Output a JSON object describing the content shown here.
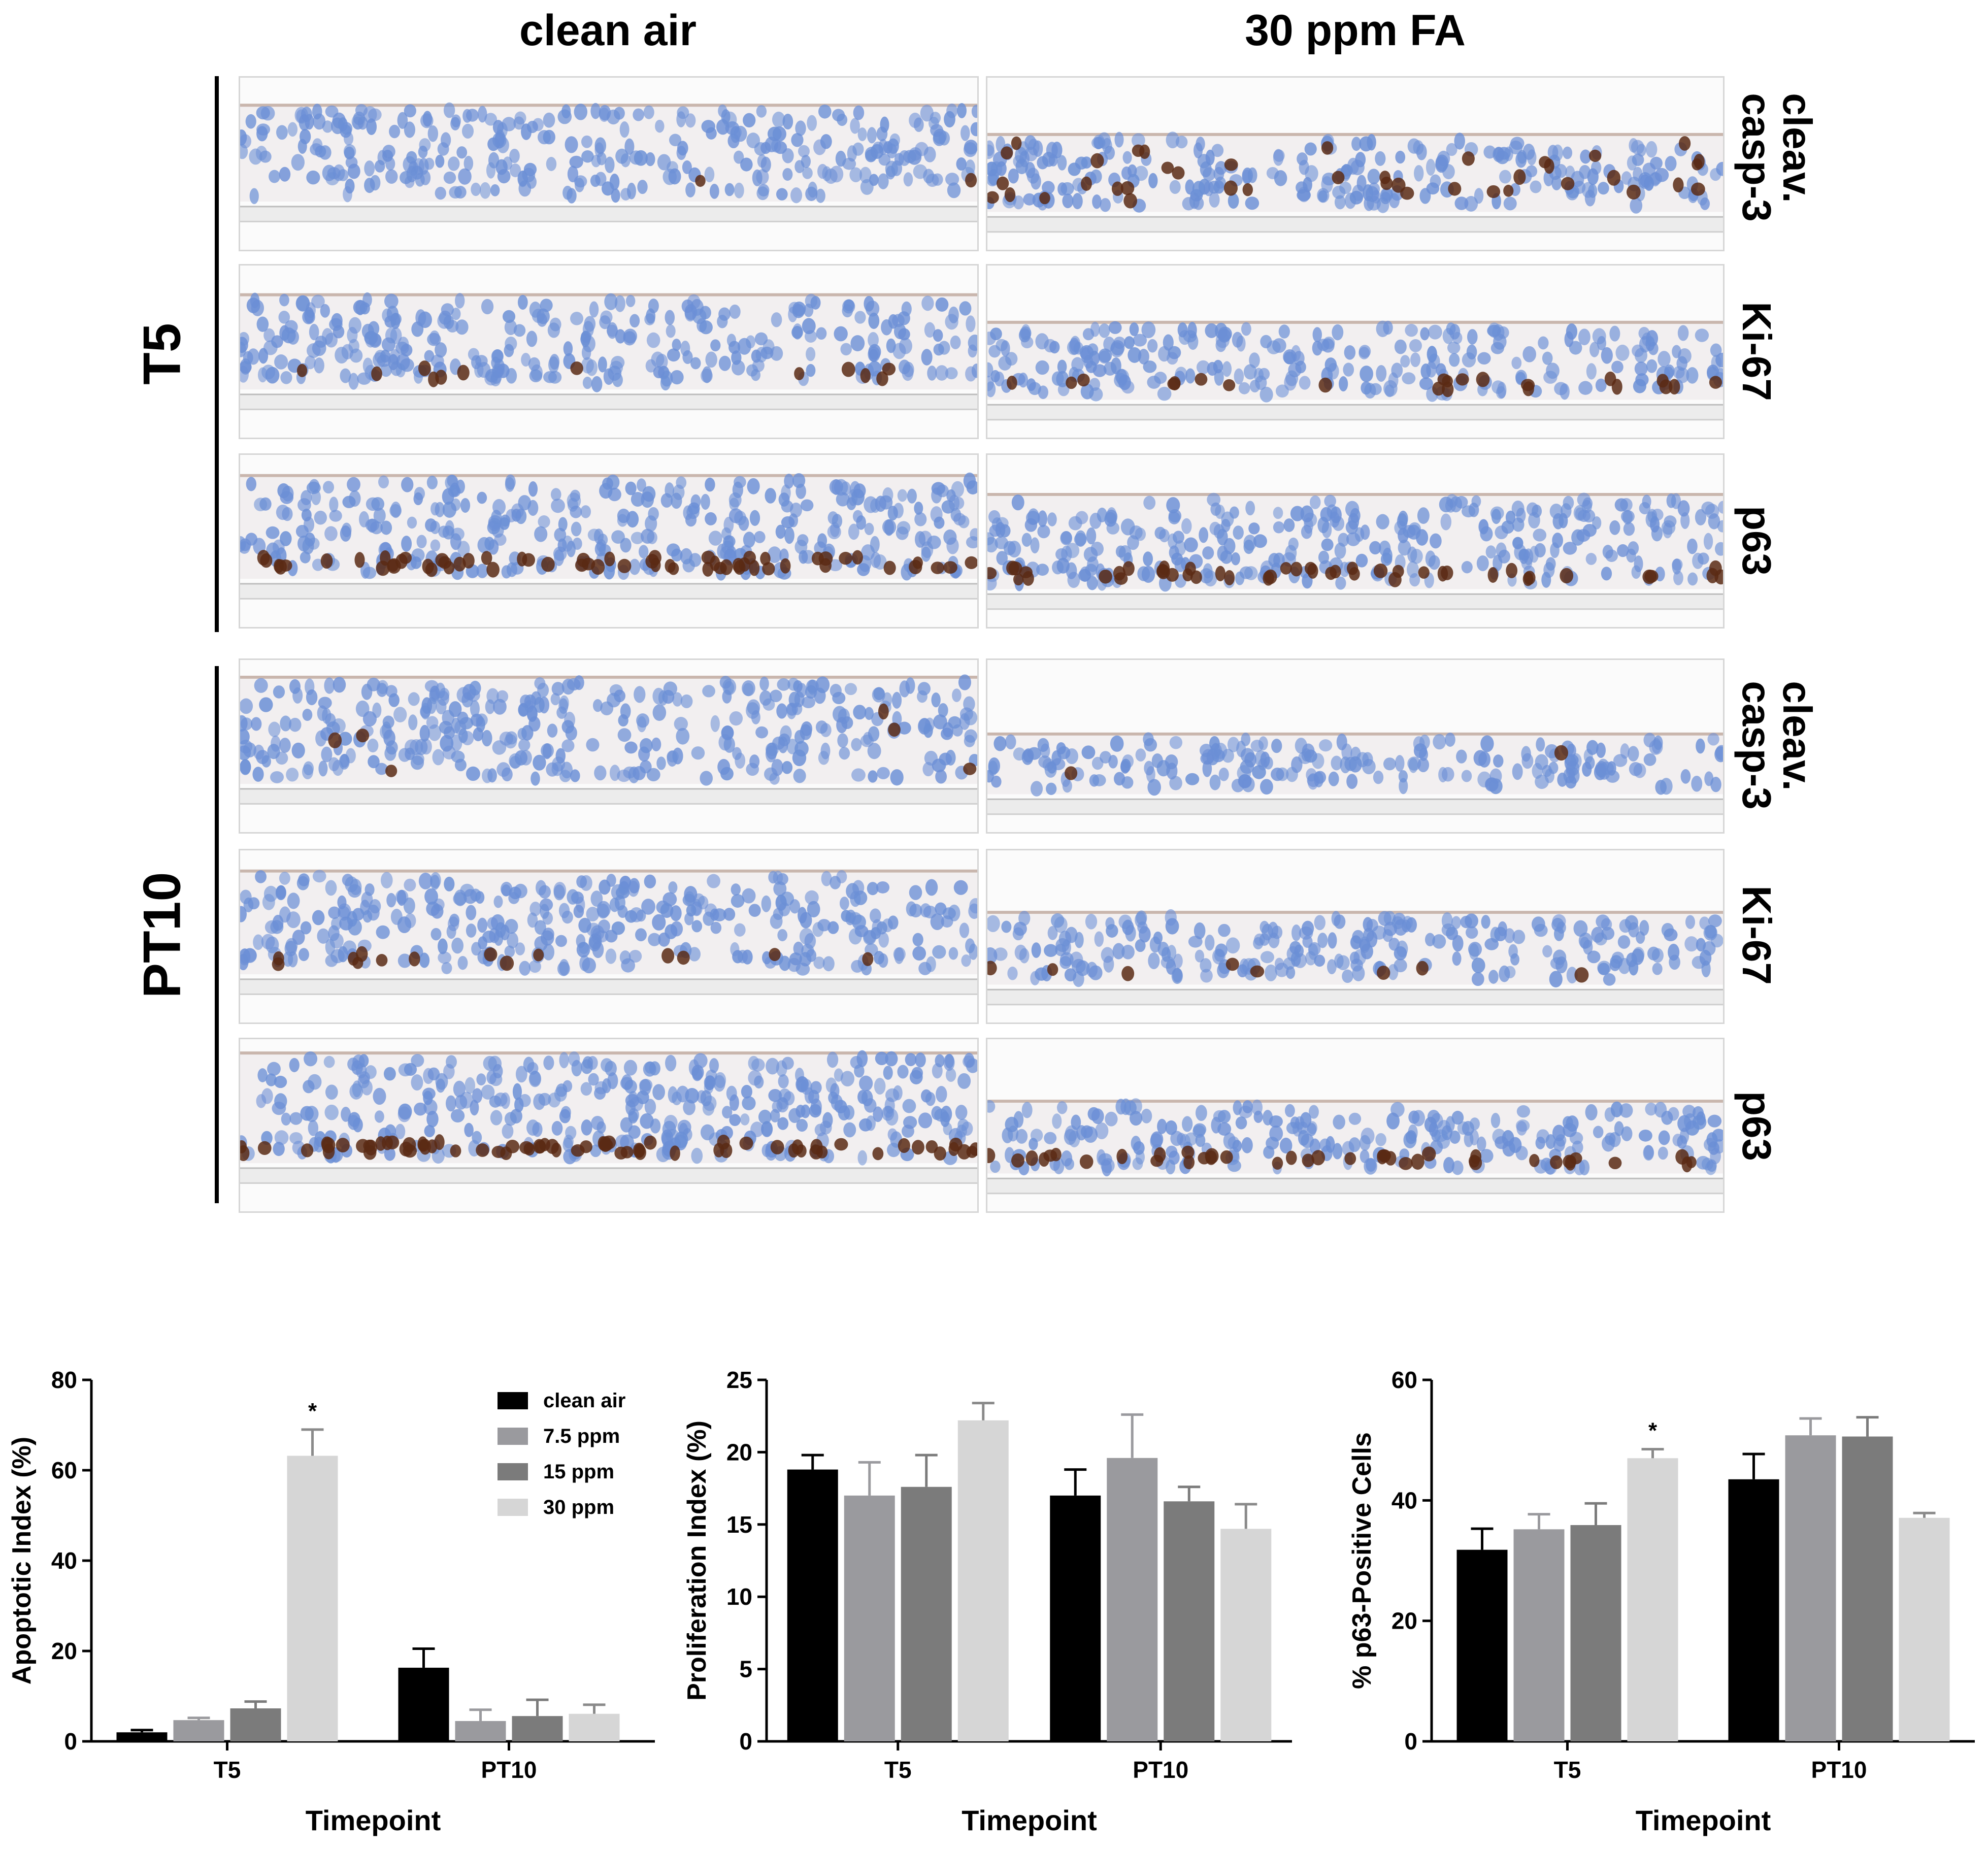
{
  "columns": [
    "clean air",
    "30 ppm FA"
  ],
  "rows": [
    {
      "label": "T5",
      "stains": [
        {
          "line1": "cleav.",
          "line2": "casp-3",
          "key": "casp3"
        },
        {
          "line1": "Ki-67",
          "line2": "",
          "key": "ki67"
        },
        {
          "line1": "p63",
          "line2": "",
          "key": "p63"
        }
      ]
    },
    {
      "label": "PT10",
      "stains": [
        {
          "line1": "cleav.",
          "line2": "casp-3",
          "key": "casp3"
        },
        {
          "line1": "Ki-67",
          "line2": "",
          "key": "ki67"
        },
        {
          "line1": "p63",
          "line2": "",
          "key": "p63"
        }
      ]
    }
  ],
  "colors": {
    "panel_border": "#d6d6d6",
    "background_stain": "#f2eff0",
    "hematoxylin_nucleus": "#6b8fd6",
    "dab_positive": "#5a2a14",
    "membrane": "#c9b6ad"
  },
  "chart_data": [
    {
      "type": "bar",
      "categories": [
        "T5",
        "PT10"
      ],
      "series": [
        {
          "name": "clean air",
          "color": "#000000",
          "values": [
            2,
            16.3
          ],
          "errors": [
            0.5,
            4.2
          ]
        },
        {
          "name": "7.5 ppm",
          "color": "#9a9a9e",
          "values": [
            4.7,
            4.5
          ],
          "errors": [
            0.5,
            2.5
          ]
        },
        {
          "name": "15 ppm",
          "color": "#7b7b7b",
          "values": [
            7.3,
            5.6
          ],
          "errors": [
            1.5,
            3.6
          ]
        },
        {
          "name": "30 ppm",
          "color": "#d6d6d6",
          "values": [
            63.2,
            6.1
          ],
          "errors": [
            5.8,
            2
          ]
        }
      ],
      "ylabel": "Apoptotic Index (%)",
      "xlabel": "Timepoint",
      "ylim": [
        0,
        80
      ],
      "yticks": [
        "0",
        "20",
        "40",
        "60",
        "80"
      ],
      "significance": [
        {
          "category": 0,
          "series": 3,
          "label": "*"
        }
      ],
      "legend": "top-right"
    },
    {
      "type": "bar",
      "categories": [
        "T5",
        "PT10"
      ],
      "series": [
        {
          "name": "clean air",
          "color": "#000000",
          "values": [
            18.8,
            17
          ],
          "errors": [
            1,
            1.8
          ]
        },
        {
          "name": "7.5 ppm",
          "color": "#9a9a9e",
          "values": [
            17,
            19.6
          ],
          "errors": [
            2.3,
            3
          ]
        },
        {
          "name": "15 ppm",
          "color": "#7b7b7b",
          "values": [
            17.6,
            16.6
          ],
          "errors": [
            2.2,
            1
          ]
        },
        {
          "name": "30 ppm",
          "color": "#d6d6d6",
          "values": [
            22.2,
            14.7
          ],
          "errors": [
            1.2,
            1.7
          ]
        }
      ],
      "ylabel": "Proliferation Index (%)",
      "xlabel": "Timepoint",
      "ylim": [
        0,
        25
      ],
      "yticks": [
        "0",
        "5",
        "10",
        "15",
        "20",
        "25"
      ]
    },
    {
      "type": "bar",
      "categories": [
        "T5",
        "PT10"
      ],
      "series": [
        {
          "name": "clean air",
          "color": "#000000",
          "values": [
            31.8,
            43.5
          ],
          "errors": [
            3.5,
            4.2
          ]
        },
        {
          "name": "7.5 ppm",
          "color": "#9a9a9e",
          "values": [
            35.2,
            50.8
          ],
          "errors": [
            2.5,
            2.8
          ]
        },
        {
          "name": "15 ppm",
          "color": "#7b7b7b",
          "values": [
            35.9,
            50.6
          ],
          "errors": [
            3.6,
            3.2
          ]
        },
        {
          "name": "30 ppm",
          "color": "#d6d6d6",
          "values": [
            47,
            37.1
          ],
          "errors": [
            1.5,
            0.8
          ]
        }
      ],
      "ylabel": "% p63-Positive Cells",
      "xlabel": "Timepoint",
      "ylim": [
        0,
        60
      ],
      "yticks": [
        "0",
        "20",
        "40",
        "60"
      ],
      "significance": [
        {
          "category": 0,
          "series": 3,
          "label": "*"
        }
      ]
    }
  ]
}
